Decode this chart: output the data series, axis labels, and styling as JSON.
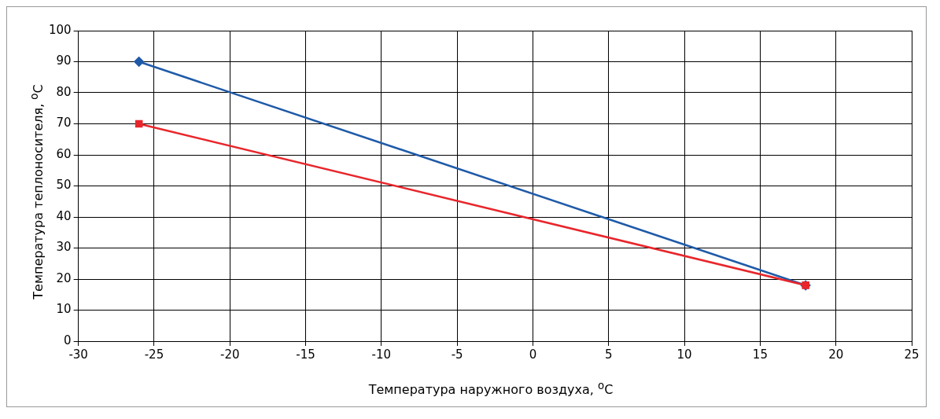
{
  "chart_data": {
    "type": "line",
    "xlabel": "Температура наружного воздуха, $^{o}$C",
    "ylabel": "Температура теплоносителя, $^{o}$C",
    "x": [
      -26,
      18
    ],
    "xlim": [
      -30,
      25
    ],
    "xticks": [
      -30,
      -25,
      -20,
      -15,
      -10,
      -5,
      0,
      5,
      10,
      15,
      20,
      25
    ],
    "ylim": [
      0,
      100
    ],
    "yticks": [
      0,
      10,
      20,
      30,
      40,
      50,
      60,
      70,
      80,
      90,
      100
    ],
    "grid": true,
    "legend": false,
    "line_style": "solid",
    "series": [
      {
        "color": "#1f5aa8",
        "marker": "diamond",
        "values": [
          90,
          18
        ]
      },
      {
        "color": "#e8262b",
        "marker": "square",
        "values": [
          70,
          18
        ]
      }
    ]
  }
}
